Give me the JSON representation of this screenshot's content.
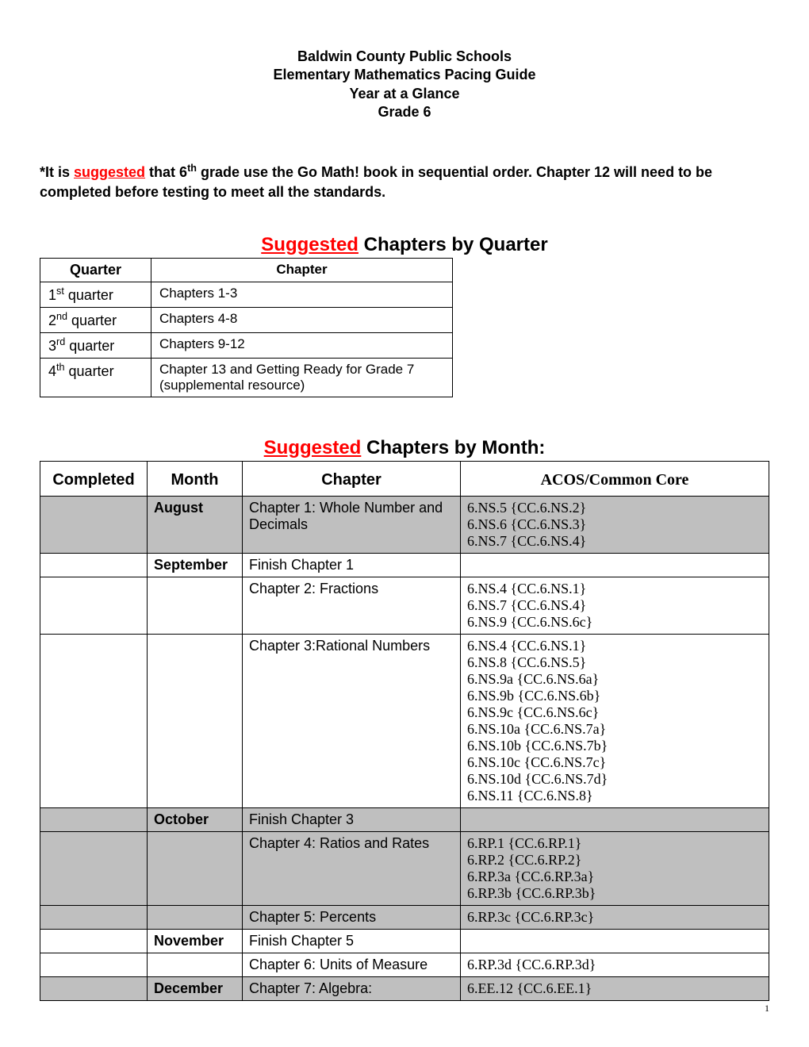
{
  "header": {
    "line1": "Baldwin County Public Schools",
    "line2": "Elementary Mathematics Pacing Guide",
    "line3": "Year at a Glance",
    "line4": "Grade 6"
  },
  "intro": {
    "prefix": "*It is ",
    "suggested_word": "suggested",
    "after_suggested": " that 6",
    "th": "th",
    "rest": " grade use the Go Math! book in sequential order.  Chapter 12 will need to be completed before testing to meet all the standards."
  },
  "quarter_section": {
    "title_red": "Suggested",
    "title_rest": " Chapters by Quarter",
    "headers": {
      "quarter": "Quarter",
      "chapter": "Chapter"
    },
    "rows": [
      {
        "ord_num": "1",
        "ord_suf": "st",
        "label": " quarter",
        "chapter": "Chapters 1-3"
      },
      {
        "ord_num": "2",
        "ord_suf": "nd",
        "label": " quarter",
        "chapter": "Chapters 4-8"
      },
      {
        "ord_num": "3",
        "ord_suf": "rd",
        "label": " quarter",
        "chapter": "Chapters 9-12"
      },
      {
        "ord_num": "4",
        "ord_suf": "th",
        "label": " quarter",
        "chapter": "Chapter 13 and Getting Ready for Grade 7 (supplemental resource)"
      }
    ]
  },
  "month_section": {
    "title_red": "Suggested",
    "title_rest": " Chapters by Month:",
    "headers": {
      "completed": "Completed",
      "month": "Month",
      "chapter": "Chapter",
      "acos": "ACOS/Common Core"
    },
    "rows": [
      {
        "gray": true,
        "month": "August",
        "chapter": "Chapter 1: Whole Number and Decimals",
        "acos": "6.NS.5 {CC.6.NS.2}\n6.NS.6 {CC.6.NS.3}\n6.NS.7 {CC.6.NS.4}"
      },
      {
        "gray": false,
        "month": "September",
        "chapter": "Finish Chapter 1",
        "acos": ""
      },
      {
        "gray": false,
        "month": "",
        "chapter": "Chapter 2: Fractions",
        "acos": "6.NS.4 {CC.6.NS.1}\n6.NS.7 {CC.6.NS.4}\n6.NS.9 {CC.6.NS.6c}"
      },
      {
        "gray": false,
        "month": "",
        "chapter": "Chapter 3:Rational Numbers",
        "acos": "6.NS.4 {CC.6.NS.1}\n6.NS.8 {CC.6.NS.5}\n6.NS.9a {CC.6.NS.6a}\n6.NS.9b {CC.6.NS.6b}\n6.NS.9c {CC.6.NS.6c}\n6.NS.10a {CC.6.NS.7a}\n6.NS.10b {CC.6.NS.7b}\n6.NS.10c {CC.6.NS.7c}\n6.NS.10d {CC.6.NS.7d}\n6.NS.11 {CC.6.NS.8}"
      },
      {
        "gray": true,
        "month": "October",
        "chapter": "Finish Chapter 3",
        "acos": ""
      },
      {
        "gray": true,
        "month": "",
        "chapter": "Chapter 4: Ratios and Rates",
        "acos": "6.RP.1 {CC.6.RP.1}\n6.RP.2 {CC.6.RP.2}\n6.RP.3a {CC.6.RP.3a}\n6.RP.3b {CC.6.RP.3b}"
      },
      {
        "gray": true,
        "month": "",
        "chapter": "Chapter 5: Percents",
        "acos": "6.RP.3c {CC.6.RP.3c}"
      },
      {
        "gray": false,
        "month": "November",
        "chapter": "Finish Chapter 5",
        "acos": ""
      },
      {
        "gray": false,
        "month": "",
        "chapter": "Chapter 6: Units of Measure",
        "acos": "6.RP.3d {CC.6.RP.3d}"
      },
      {
        "gray": true,
        "month": "December",
        "chapter": "Chapter 7: Algebra:",
        "acos": "6.EE.12 {CC.6.EE.1}"
      }
    ]
  },
  "page_number": "1"
}
